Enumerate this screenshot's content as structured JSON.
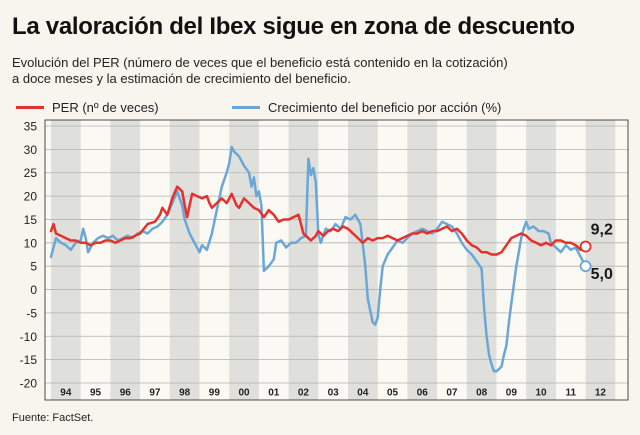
{
  "source": "Fuente: FactSet.",
  "chart_data": {
    "type": "line",
    "title": "La valoración del Ibex sigue en zona de descuento",
    "subtitle": [
      "Evolución del PER (número de veces que el beneficio está contenido en la cotización)",
      "a doce meses y la estimación de crecimiento del beneficio."
    ],
    "ylim": [
      -20,
      35
    ],
    "yticks": [
      35,
      30,
      25,
      20,
      15,
      10,
      5,
      0,
      -5,
      -10,
      -15,
      -20
    ],
    "xlim": [
      "1994-01",
      "2012-12"
    ],
    "x_tick_labels": [
      "94",
      "95",
      "96",
      "97",
      "98",
      "99",
      "00",
      "01",
      "02",
      "03",
      "04",
      "05",
      "06",
      "07",
      "08",
      "09",
      "10",
      "11",
      "12"
    ],
    "year_shading": "alternating",
    "grid": true,
    "legend": "top-left",
    "colors": {
      "band": "#dfdfdc",
      "grid": "#b3b3b0",
      "frame": "#4a4a4a"
    },
    "series": [
      {
        "name": "PER (nº de veces)",
        "color": "#e5302c",
        "points": [
          [
            "1994-01",
            12.5
          ],
          [
            "1994-02",
            14
          ],
          [
            "1994-03",
            12
          ],
          [
            "1994-05",
            11.5
          ],
          [
            "1994-07",
            11
          ],
          [
            "1994-09",
            10.5
          ],
          [
            "1994-11",
            10.5
          ],
          [
            "1995-01",
            10
          ],
          [
            "1995-03",
            10
          ],
          [
            "1995-05",
            9.5
          ],
          [
            "1995-07",
            10
          ],
          [
            "1995-09",
            10
          ],
          [
            "1995-11",
            10.5
          ],
          [
            "1996-01",
            10.5
          ],
          [
            "1996-03",
            10
          ],
          [
            "1996-05",
            10.5
          ],
          [
            "1996-07",
            11
          ],
          [
            "1996-09",
            11
          ],
          [
            "1996-11",
            11.5
          ],
          [
            "1997-01",
            12
          ],
          [
            "1997-04",
            14
          ],
          [
            "1997-07",
            14.5
          ],
          [
            "1997-09",
            16
          ],
          [
            "1997-10",
            17.5
          ],
          [
            "1997-12",
            16
          ],
          [
            "1998-02",
            19.5
          ],
          [
            "1998-04",
            22
          ],
          [
            "1998-06",
            21
          ],
          [
            "1998-07",
            18
          ],
          [
            "1998-08",
            15.5
          ],
          [
            "1998-10",
            20.5
          ],
          [
            "1998-12",
            20
          ],
          [
            "1999-02",
            19.5
          ],
          [
            "1999-04",
            20
          ],
          [
            "1999-05",
            18.5
          ],
          [
            "1999-06",
            17.5
          ],
          [
            "1999-08",
            18.5
          ],
          [
            "1999-10",
            19.5
          ],
          [
            "1999-12",
            18.5
          ],
          [
            "2000-02",
            20.5
          ],
          [
            "2000-04",
            18
          ],
          [
            "2000-05",
            17.5
          ],
          [
            "2000-07",
            19.5
          ],
          [
            "2000-09",
            18.5
          ],
          [
            "2000-11",
            17.5
          ],
          [
            "2001-01",
            17
          ],
          [
            "2001-03",
            15.5
          ],
          [
            "2001-05",
            17
          ],
          [
            "2001-07",
            16
          ],
          [
            "2001-09",
            14.5
          ],
          [
            "2001-11",
            15
          ],
          [
            "2002-01",
            15
          ],
          [
            "2002-03",
            15.5
          ],
          [
            "2002-05",
            16
          ],
          [
            "2002-06",
            14
          ],
          [
            "2002-07",
            12
          ],
          [
            "2002-08",
            11.5
          ],
          [
            "2002-10",
            10.5
          ],
          [
            "2002-12",
            11.5
          ],
          [
            "2003-01",
            12.5
          ],
          [
            "2003-03",
            11.5
          ],
          [
            "2003-05",
            12.5
          ],
          [
            "2003-07",
            13
          ],
          [
            "2003-09",
            12.5
          ],
          [
            "2003-11",
            13.5
          ],
          [
            "2004-01",
            13
          ],
          [
            "2004-03",
            12
          ],
          [
            "2004-05",
            11
          ],
          [
            "2004-07",
            10
          ],
          [
            "2004-09",
            11
          ],
          [
            "2004-11",
            10.5
          ],
          [
            "2005-01",
            11
          ],
          [
            "2005-03",
            11
          ],
          [
            "2005-05",
            11.5
          ],
          [
            "2005-07",
            11
          ],
          [
            "2005-09",
            10.5
          ],
          [
            "2005-11",
            11
          ],
          [
            "2006-01",
            11.5
          ],
          [
            "2006-03",
            12
          ],
          [
            "2006-05",
            12
          ],
          [
            "2006-07",
            12.5
          ],
          [
            "2006-09",
            12
          ],
          [
            "2006-11",
            12.5
          ],
          [
            "2007-01",
            12.5
          ],
          [
            "2007-03",
            13
          ],
          [
            "2007-05",
            13.5
          ],
          [
            "2007-07",
            12.5
          ],
          [
            "2007-09",
            13
          ],
          [
            "2007-11",
            12
          ],
          [
            "2008-01",
            10.5
          ],
          [
            "2008-03",
            9.5
          ],
          [
            "2008-05",
            9
          ],
          [
            "2008-07",
            8
          ],
          [
            "2008-09",
            8
          ],
          [
            "2008-11",
            7.5
          ],
          [
            "2009-01",
            7.5
          ],
          [
            "2009-03",
            8
          ],
          [
            "2009-05",
            9.5
          ],
          [
            "2009-07",
            11
          ],
          [
            "2009-09",
            11.5
          ],
          [
            "2009-11",
            12
          ],
          [
            "2010-01",
            11.5
          ],
          [
            "2010-03",
            10.5
          ],
          [
            "2010-05",
            10
          ],
          [
            "2010-07",
            9.5
          ],
          [
            "2010-09",
            10
          ],
          [
            "2010-11",
            9.5
          ],
          [
            "2011-01",
            10.5
          ],
          [
            "2011-03",
            10.5
          ],
          [
            "2011-05",
            10
          ],
          [
            "2011-07",
            10
          ],
          [
            "2011-09",
            9.5
          ],
          [
            "2011-11",
            8.5
          ],
          [
            "2012-01",
            9.2
          ]
        ]
      },
      {
        "name": "Crecimiento del beneficio por acción (%)",
        "color": "#6aa7d6",
        "points": [
          [
            "1994-01",
            7
          ],
          [
            "1994-03",
            11
          ],
          [
            "1994-05",
            10
          ],
          [
            "1994-07",
            9.5
          ],
          [
            "1994-09",
            8.5
          ],
          [
            "1994-11",
            10
          ],
          [
            "1995-01",
            10.5
          ],
          [
            "1995-02",
            13
          ],
          [
            "1995-03",
            11
          ],
          [
            "1995-04",
            8
          ],
          [
            "1995-06",
            10
          ],
          [
            "1995-08",
            11
          ],
          [
            "1995-10",
            11.5
          ],
          [
            "1995-12",
            11
          ],
          [
            "1996-02",
            11.5
          ],
          [
            "1996-04",
            10.5
          ],
          [
            "1996-06",
            11
          ],
          [
            "1996-08",
            11.5
          ],
          [
            "1996-10",
            11
          ],
          [
            "1996-12",
            12
          ],
          [
            "1997-02",
            12.5
          ],
          [
            "1997-04",
            12
          ],
          [
            "1997-06",
            13
          ],
          [
            "1997-08",
            13.5
          ],
          [
            "1997-10",
            14.5
          ],
          [
            "1997-12",
            16
          ],
          [
            "1998-02",
            18.5
          ],
          [
            "1998-04",
            21
          ],
          [
            "1998-06",
            18
          ],
          [
            "1998-07",
            15
          ],
          [
            "1998-09",
            12
          ],
          [
            "1998-11",
            10
          ],
          [
            "1999-01",
            8
          ],
          [
            "1999-02",
            9.5
          ],
          [
            "1999-04",
            8.5
          ],
          [
            "1999-06",
            12
          ],
          [
            "1999-08",
            17
          ],
          [
            "1999-10",
            22
          ],
          [
            "1999-12",
            25
          ],
          [
            "2000-01",
            27
          ],
          [
            "2000-02",
            30.5
          ],
          [
            "2000-03",
            29.5
          ],
          [
            "2000-05",
            28.5
          ],
          [
            "2000-07",
            26.5
          ],
          [
            "2000-09",
            25
          ],
          [
            "2000-10",
            22
          ],
          [
            "2000-11",
            24
          ],
          [
            "2000-12",
            20
          ],
          [
            "2001-01",
            21
          ],
          [
            "2001-02",
            18
          ],
          [
            "2001-03",
            4
          ],
          [
            "2001-05",
            5
          ],
          [
            "2001-07",
            6.5
          ],
          [
            "2001-08",
            10
          ],
          [
            "2001-10",
            10.5
          ],
          [
            "2001-12",
            9
          ],
          [
            "2002-02",
            10
          ],
          [
            "2002-04",
            10
          ],
          [
            "2002-06",
            11
          ],
          [
            "2002-08",
            11.5
          ],
          [
            "2002-09",
            28
          ],
          [
            "2002-10",
            24.5
          ],
          [
            "2002-11",
            26
          ],
          [
            "2002-12",
            23
          ],
          [
            "2003-01",
            12
          ],
          [
            "2003-02",
            10
          ],
          [
            "2003-04",
            13
          ],
          [
            "2003-06",
            12.5
          ],
          [
            "2003-08",
            14
          ],
          [
            "2003-10",
            13
          ],
          [
            "2003-12",
            15.5
          ],
          [
            "2004-02",
            15
          ],
          [
            "2004-04",
            16
          ],
          [
            "2004-06",
            14
          ],
          [
            "2004-08",
            5
          ],
          [
            "2004-09",
            -2
          ],
          [
            "2004-11",
            -7
          ],
          [
            "2004-12",
            -7.5
          ],
          [
            "2005-01",
            -6
          ],
          [
            "2005-02",
            0
          ],
          [
            "2005-03",
            5
          ],
          [
            "2005-05",
            7.5
          ],
          [
            "2005-07",
            9
          ],
          [
            "2005-09",
            10.5
          ],
          [
            "2005-11",
            10
          ],
          [
            "2006-01",
            11
          ],
          [
            "2006-03",
            12
          ],
          [
            "2006-05",
            12.5
          ],
          [
            "2006-07",
            13
          ],
          [
            "2006-09",
            12.5
          ],
          [
            "2006-11",
            12
          ],
          [
            "2007-01",
            13
          ],
          [
            "2007-03",
            14.5
          ],
          [
            "2007-05",
            14
          ],
          [
            "2007-07",
            13.5
          ],
          [
            "2007-09",
            12
          ],
          [
            "2007-11",
            10
          ],
          [
            "2008-01",
            8.5
          ],
          [
            "2008-03",
            7.5
          ],
          [
            "2008-05",
            6
          ],
          [
            "2008-07",
            4.5
          ],
          [
            "2008-08",
            -4
          ],
          [
            "2008-09",
            -10
          ],
          [
            "2008-10",
            -14
          ],
          [
            "2008-11",
            -16
          ],
          [
            "2008-12",
            -17.5
          ],
          [
            "2009-01",
            -17.5
          ],
          [
            "2009-02",
            -17
          ],
          [
            "2009-03",
            -16.5
          ],
          [
            "2009-04",
            -14
          ],
          [
            "2009-05",
            -12
          ],
          [
            "2009-06",
            -7
          ],
          [
            "2009-07",
            -3
          ],
          [
            "2009-08",
            1
          ],
          [
            "2009-09",
            5
          ],
          [
            "2009-10",
            8
          ],
          [
            "2009-11",
            11
          ],
          [
            "2009-12",
            13
          ],
          [
            "2010-01",
            14.5
          ],
          [
            "2010-02",
            13
          ],
          [
            "2010-04",
            13.5
          ],
          [
            "2010-06",
            12.5
          ],
          [
            "2010-08",
            12.5
          ],
          [
            "2010-10",
            12
          ],
          [
            "2010-11",
            10
          ],
          [
            "2011-01",
            9
          ],
          [
            "2011-03",
            8
          ],
          [
            "2011-05",
            9.5
          ],
          [
            "2011-07",
            8.5
          ],
          [
            "2011-09",
            9
          ],
          [
            "2011-11",
            7
          ],
          [
            "2012-01",
            5
          ]
        ]
      }
    ],
    "annotations": [
      {
        "text": "9,2",
        "series": "PER (nº de veces)"
      },
      {
        "text": "5,0",
        "series": "Crecimiento del beneficio por acción (%)"
      }
    ]
  }
}
